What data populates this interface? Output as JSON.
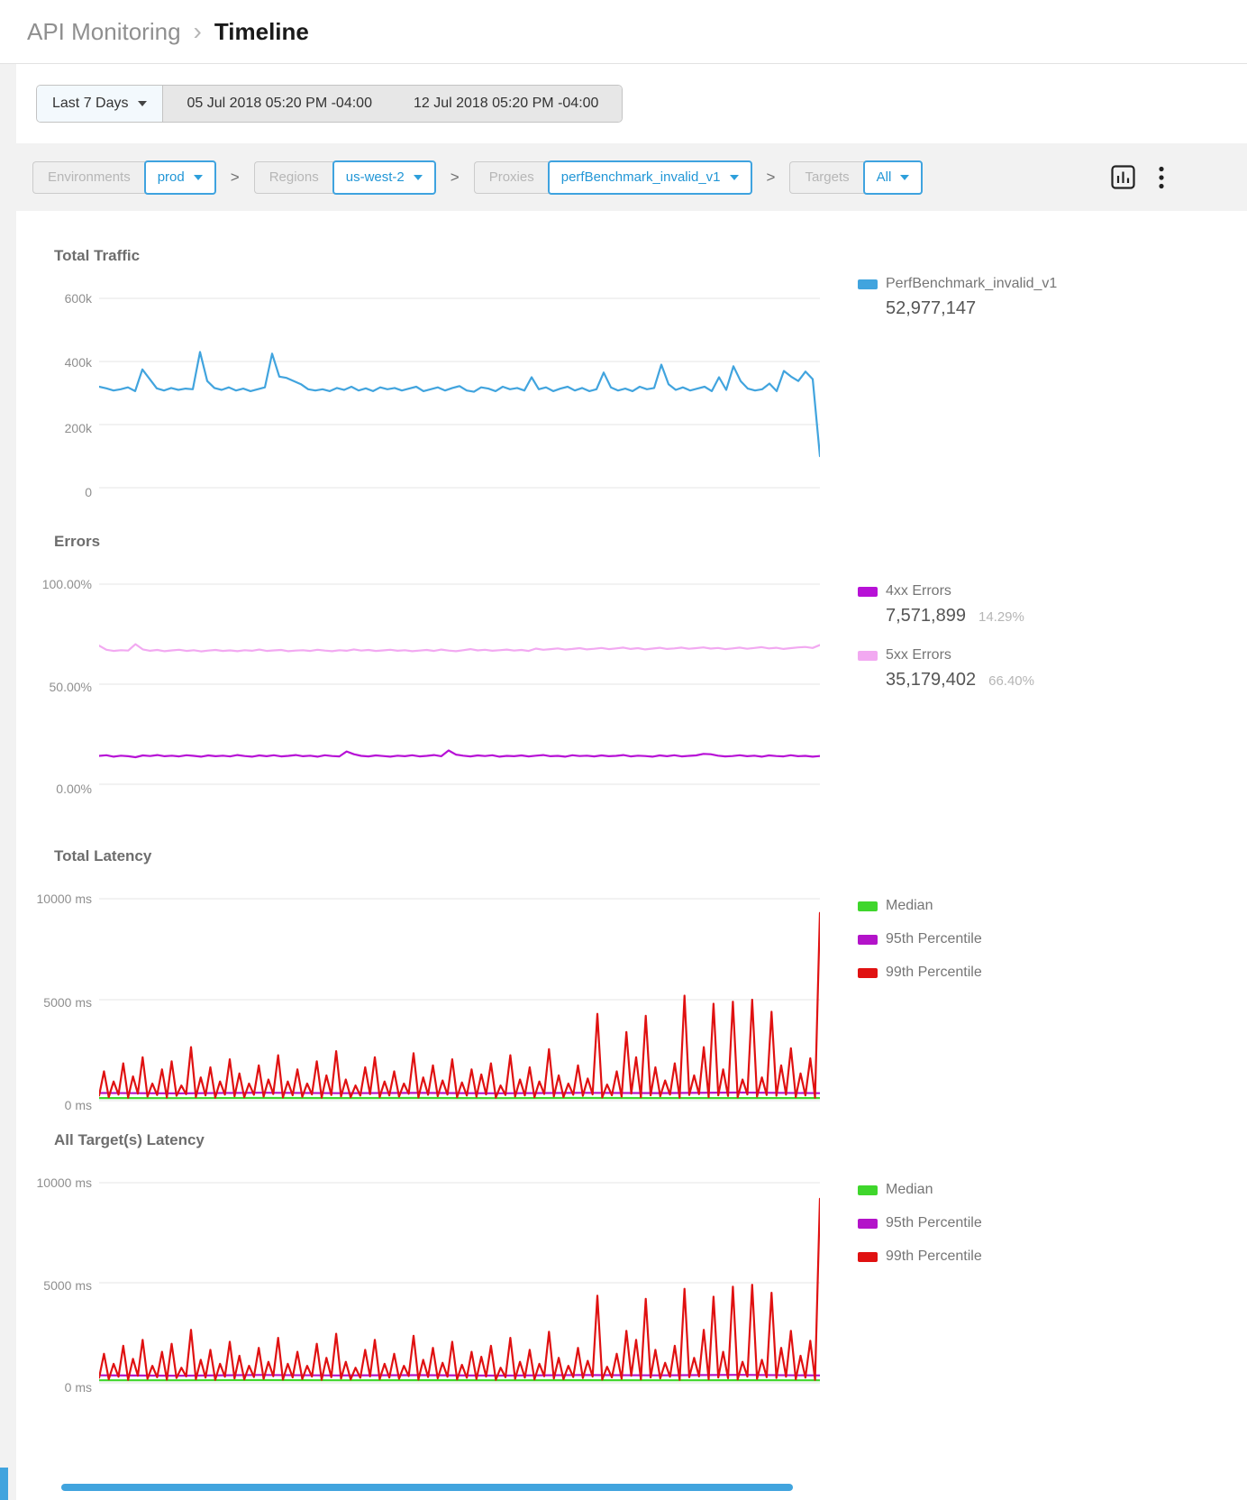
{
  "header": {
    "breadcrumb_parent": "API Monitoring",
    "breadcrumb_separator": "›",
    "title": "Timeline"
  },
  "datebar": {
    "preset_label": "Last 7 Days",
    "start": "05 Jul 2018 05:20 PM -04:00",
    "end": "12 Jul 2018 05:20 PM -04:00"
  },
  "filters": {
    "separator": ">",
    "groups": [
      {
        "label": "Environments",
        "value": "prod"
      },
      {
        "label": "Regions",
        "value": "us-west-2"
      },
      {
        "label": "Proxies",
        "value": "perfBenchmark_invalid_v1"
      },
      {
        "label": "Targets",
        "value": "All"
      }
    ]
  },
  "colors": {
    "accent_blue": "#41a4de",
    "grid": "#e6e6e6",
    "error_4xx": "#b711d6",
    "error_5xx": "#f2a9f1",
    "median_green": "#3fd62c",
    "p95_purple": "#b313c9",
    "p99_red": "#e01111"
  },
  "chart_data": [
    {
      "type": "line",
      "title": "Total Traffic",
      "unit": "thousands of requests",
      "ymax": 600,
      "ylim": [
        0,
        600000
      ],
      "ytick_labels": [
        "600k",
        "400k",
        "200k",
        "0"
      ],
      "legend_position": "right",
      "series": [
        {
          "name": "PerfBenchmark_invalid_v1",
          "total": "52,977,147",
          "color": "#41a4de",
          "values": [
            320,
            315,
            308,
            312,
            318,
            306,
            375,
            345,
            315,
            308,
            316,
            310,
            314,
            312,
            430,
            338,
            316,
            310,
            318,
            308,
            314,
            306,
            312,
            318,
            425,
            352,
            348,
            338,
            328,
            312,
            308,
            312,
            306,
            316,
            310,
            320,
            308,
            315,
            306,
            318,
            312,
            316,
            308,
            314,
            320,
            306,
            312,
            318,
            308,
            316,
            322,
            308,
            304,
            318,
            314,
            306,
            320,
            312,
            316,
            308,
            350,
            312,
            318,
            306,
            314,
            320,
            308,
            316,
            306,
            312,
            365,
            318,
            308,
            314,
            306,
            320,
            312,
            316,
            390,
            328,
            310,
            318,
            308,
            314,
            320,
            306,
            350,
            310,
            385,
            338,
            314,
            308,
            312,
            330,
            306,
            370,
            352,
            338,
            368,
            344,
            100
          ]
        }
      ]
    },
    {
      "type": "line",
      "title": "Errors",
      "unit": "percent",
      "ymax": 100,
      "ylim": [
        0,
        100
      ],
      "ytick_labels": [
        "100.00%",
        "50.00%",
        "0.00%"
      ],
      "legend_position": "right",
      "series": [
        {
          "name": "4xx Errors",
          "total": "7,571,899",
          "percent": "14.29%",
          "color": "#b711d6",
          "values": [
            14.2,
            14.5,
            13.8,
            14.3,
            14.0,
            13.5,
            14.4,
            14.1,
            14.6,
            14.0,
            14.3,
            13.9,
            14.5,
            14.2,
            13.8,
            14.4,
            14.0,
            14.3,
            13.9,
            14.6,
            14.1,
            13.8,
            14.4,
            14.0,
            14.5,
            13.9,
            14.2,
            14.6,
            14.0,
            14.3,
            13.8,
            14.5,
            14.1,
            13.9,
            16.4,
            15.0,
            14.2,
            13.9,
            14.4,
            14.1,
            13.8,
            14.3,
            14.0,
            14.5,
            13.9,
            14.2,
            14.6,
            14.0,
            16.9,
            14.8,
            14.3,
            13.9,
            14.4,
            14.1,
            14.5,
            13.8,
            14.2,
            14.0,
            14.4,
            13.9,
            14.3,
            14.6,
            14.0,
            14.2,
            13.8,
            14.5,
            14.1,
            14.3,
            13.9,
            14.4,
            14.0,
            14.2,
            14.6,
            13.9,
            14.3,
            14.1,
            13.8,
            14.4,
            14.0,
            14.5,
            13.9,
            14.2,
            14.4,
            15.2,
            15.0,
            14.3,
            13.9,
            14.1,
            14.5,
            14.0,
            14.3,
            13.8,
            14.4,
            14.1,
            13.9,
            14.5,
            14.0,
            14.2,
            13.8,
            14.1
          ]
        },
        {
          "name": "5xx Errors",
          "total": "35,179,402",
          "percent": "66.40%",
          "color": "#f2a9f1",
          "values": [
            69.3,
            67.2,
            66.6,
            67.0,
            66.8,
            70.0,
            67.4,
            66.7,
            67.1,
            66.5,
            66.9,
            67.2,
            66.6,
            67.0,
            66.4,
            66.8,
            67.1,
            66.6,
            66.9,
            66.5,
            67.0,
            66.7,
            67.3,
            66.6,
            66.9,
            67.1,
            66.5,
            66.8,
            67.0,
            66.6,
            67.2,
            66.8,
            66.5,
            67.0,
            66.7,
            67.4,
            66.8,
            67.1,
            66.6,
            66.9,
            67.2,
            66.7,
            67.0,
            66.5,
            66.8,
            67.1,
            66.6,
            67.3,
            66.8,
            66.5,
            67.0,
            67.5,
            66.9,
            67.2,
            66.7,
            67.0,
            67.3,
            66.8,
            67.1,
            66.6,
            67.8,
            67.2,
            67.5,
            67.9,
            67.3,
            67.6,
            68.0,
            67.4,
            67.7,
            68.1,
            67.5,
            67.9,
            68.3,
            67.6,
            68.0,
            67.4,
            67.8,
            68.2,
            67.6,
            67.9,
            68.3,
            67.7,
            68.0,
            68.4,
            67.8,
            68.1,
            67.5,
            67.9,
            68.3,
            67.7,
            68.1,
            68.5,
            67.9,
            68.2,
            67.6,
            68.0,
            68.4,
            68.6,
            68.1,
            69.6
          ]
        }
      ]
    },
    {
      "type": "line",
      "title": "Total Latency",
      "unit": "ms",
      "ymax": 10000,
      "ylim": [
        0,
        10000
      ],
      "ytick_labels": [
        "10000 ms",
        "5000 ms",
        "0 ms"
      ],
      "legend_position": "right",
      "series": [
        {
          "name": "Median",
          "color": "#3fd62c",
          "values": [
            130,
            125,
            135,
            128,
            132,
            127,
            133,
            129,
            131,
            128
          ]
        },
        {
          "name": "95th Percentile",
          "color": "#b313c9",
          "values": [
            380,
            360,
            395,
            370,
            385,
            365,
            390,
            375,
            400,
            370
          ]
        },
        {
          "name": "99th Percentile",
          "color": "#e01111",
          "values": [
            250,
            1450,
            180,
            950,
            300,
            1850,
            150,
            1200,
            350,
            2150,
            200,
            850,
            280,
            1550,
            160,
            1950,
            240,
            750,
            320,
            2650,
            180,
            1150,
            260,
            1650,
            150,
            950,
            300,
            2050,
            220,
            1350,
            170,
            850,
            290,
            1750,
            200,
            1050,
            330,
            2250,
            160,
            950,
            270,
            1550,
            190,
            850,
            310,
            1950,
            150,
            1250,
            280,
            2450,
            210,
            1050,
            170,
            750,
            250,
            1650,
            320,
            2150,
            180,
            950,
            260,
            1450,
            200,
            850,
            340,
            2350,
            160,
            1150,
            290,
            1750,
            220,
            1000,
            300,
            2050,
            170,
            900,
            250,
            1550,
            190,
            1300,
            310,
            1850,
            150,
            750,
            280,
            2250,
            200,
            1050,
            260,
            1650,
            170,
            950,
            330,
            2550,
            210,
            1250,
            180,
            850,
            290,
            1750,
            240,
            1100,
            310,
            4300,
            160,
            800,
            270,
            1450,
            200,
            3400,
            350,
            2150,
            170,
            4200,
            260,
            1650,
            220,
            1000,
            300,
            1850,
            150,
            5200,
            280,
            1250,
            320,
            2650,
            180,
            4800,
            260,
            1550,
            230,
            4900,
            170,
            1050,
            310,
            5000,
            200,
            1150,
            280,
            4400,
            240,
            1750,
            300,
            2600,
            180,
            1350,
            260,
            2100,
            150,
            9300
          ]
        }
      ]
    },
    {
      "type": "line",
      "title": "All Target(s) Latency",
      "unit": "ms",
      "ymax": 10000,
      "ylim": [
        0,
        10000
      ],
      "ytick_labels": [
        "10000 ms",
        "5000 ms",
        "0 ms"
      ],
      "legend_position": "right",
      "series": [
        {
          "name": "Median",
          "color": "#3fd62c",
          "values": [
            128,
            124,
            133,
            127,
            131,
            126,
            132,
            128,
            130,
            127
          ]
        },
        {
          "name": "95th Percentile",
          "color": "#b313c9",
          "values": [
            375,
            358,
            390,
            368,
            382,
            362,
            388,
            372,
            395,
            368
          ]
        },
        {
          "name": "99th Percentile",
          "color": "#e01111",
          "values": [
            250,
            1450,
            180,
            950,
            300,
            1850,
            150,
            1200,
            350,
            2150,
            200,
            850,
            280,
            1550,
            160,
            1950,
            240,
            750,
            320,
            2650,
            180,
            1150,
            260,
            1650,
            150,
            950,
            300,
            2050,
            220,
            1350,
            170,
            850,
            290,
            1750,
            200,
            1050,
            330,
            2250,
            160,
            950,
            270,
            1550,
            190,
            850,
            310,
            1950,
            150,
            1250,
            280,
            2450,
            210,
            1050,
            170,
            750,
            250,
            1650,
            320,
            2150,
            180,
            950,
            260,
            1450,
            200,
            850,
            340,
            2350,
            160,
            1150,
            290,
            1750,
            220,
            1000,
            300,
            2050,
            170,
            900,
            250,
            1550,
            190,
            1300,
            310,
            1850,
            150,
            750,
            280,
            2250,
            200,
            1050,
            260,
            1650,
            170,
            950,
            330,
            2550,
            210,
            1250,
            180,
            850,
            290,
            1750,
            240,
            1100,
            310,
            4350,
            160,
            800,
            270,
            1450,
            200,
            2600,
            350,
            2150,
            170,
            4200,
            260,
            1650,
            220,
            1000,
            300,
            1850,
            150,
            4700,
            280,
            1250,
            320,
            2650,
            180,
            4300,
            260,
            1550,
            230,
            4800,
            170,
            1050,
            310,
            4900,
            200,
            1150,
            280,
            4500,
            240,
            1750,
            300,
            2600,
            180,
            1350,
            260,
            2100,
            150,
            9200
          ]
        }
      ]
    }
  ]
}
